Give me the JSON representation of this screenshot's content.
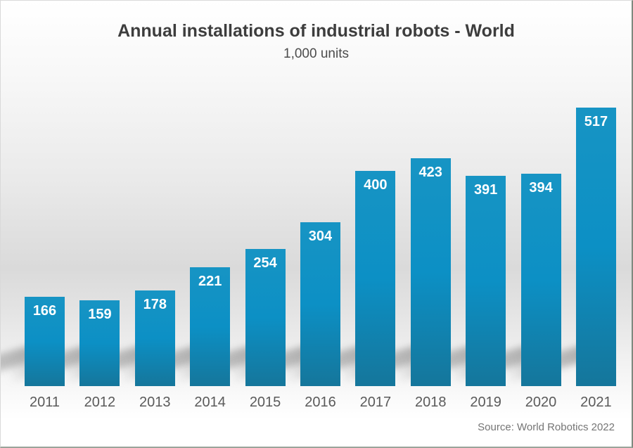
{
  "header": {
    "title": "Annual installations of industrial robots - World",
    "subtitle": "1,000 units"
  },
  "footer": {
    "source_label": "Source: World Robotics 2022"
  },
  "colors": {
    "bar_gradient_top": "#1794C4",
    "bar_gradient_mid": "#0C90C5",
    "bar_gradient_bottom": "#15769B",
    "value_label": "#FFFFFF",
    "year_label": "#5A5A5A",
    "title_text": "#3D3D3D",
    "subtitle_text": "#4C4C4C",
    "source_text": "#757575",
    "background_gray": "#DADADA"
  },
  "chart_data": {
    "type": "bar",
    "title": "Annual installations of industrial robots - World",
    "subtitle": "1,000 units",
    "unit": "1,000 units",
    "categories": [
      "2011",
      "2012",
      "2013",
      "2014",
      "2015",
      "2016",
      "2017",
      "2018",
      "2019",
      "2020",
      "2021"
    ],
    "values": [
      166,
      159,
      178,
      221,
      254,
      304,
      400,
      423,
      391,
      394,
      517
    ],
    "value_labels_position": "inside-top",
    "xlabel": "",
    "ylabel": "1,000 units",
    "ylim": [
      0,
      560
    ],
    "grid": false,
    "legend": false,
    "axis_lines": false,
    "bar_color": "#0E8EC2",
    "source": "Source: World Robotics 2022"
  }
}
